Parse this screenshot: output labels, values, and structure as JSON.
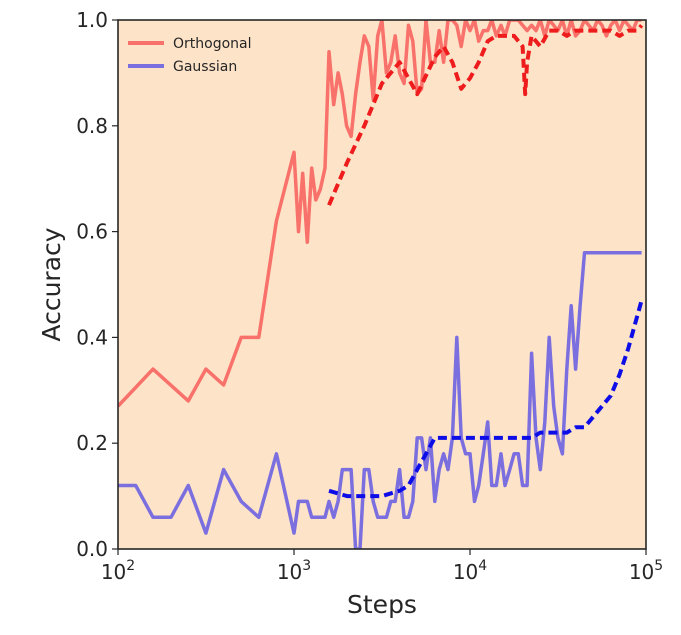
{
  "chart_data": {
    "type": "line",
    "x_scale": "log",
    "xlim": [
      100,
      100000
    ],
    "ylim": [
      0.0,
      1.0
    ],
    "xlabel": "Steps",
    "ylabel": "Accuracy",
    "background_color": "#fde3c8",
    "x_ticks": [
      {
        "value": 100,
        "base": "10",
        "exp": "2"
      },
      {
        "value": 1000,
        "base": "10",
        "exp": "3"
      },
      {
        "value": 10000,
        "base": "10",
        "exp": "4"
      },
      {
        "value": 100000,
        "base": "10",
        "exp": "5"
      }
    ],
    "y_ticks": [
      {
        "value": 0.0,
        "label": "0.0"
      },
      {
        "value": 0.2,
        "label": "0.2"
      },
      {
        "value": 0.4,
        "label": "0.4"
      },
      {
        "value": 0.6,
        "label": "0.6"
      },
      {
        "value": 0.8,
        "label": "0.8"
      },
      {
        "value": 1.0,
        "label": "1.0"
      }
    ],
    "legend": {
      "placement": "top-left",
      "entries": [
        {
          "label": "Orthogonal",
          "color": "#f8716a"
        },
        {
          "label": "Gaussian",
          "color": "#7b6fe0"
        }
      ]
    },
    "series": [
      {
        "name": "Orthogonal",
        "style": "solid",
        "color": "#f8716a",
        "x": [
          100,
          158,
          251,
          316,
          398,
          501,
          631,
          794,
          1000,
          1060,
          1120,
          1190,
          1260,
          1330,
          1410,
          1500,
          1580,
          1680,
          1780,
          1880,
          1990,
          2110,
          2240,
          2370,
          2510,
          2660,
          2820,
          2990,
          3160,
          3350,
          3550,
          3760,
          3980,
          4220,
          4470,
          4730,
          5010,
          5310,
          5620,
          5960,
          6310,
          6680,
          7080,
          7500,
          7940,
          8410,
          8910,
          9440,
          10000,
          10600,
          11200,
          11900,
          12600,
          13300,
          14100,
          15000,
          15800,
          16800,
          17800,
          18800,
          19900,
          21100,
          22400,
          23700,
          25100,
          26600,
          28200,
          29900,
          31600,
          33500,
          35500,
          37600,
          39800,
          42200,
          44700,
          47300,
          50100,
          53100,
          56200,
          59600,
          63100,
          66800,
          70800,
          75000,
          79400,
          84100,
          89100,
          94400
        ],
        "y": [
          0.27,
          0.34,
          0.28,
          0.34,
          0.31,
          0.4,
          0.4,
          0.62,
          0.75,
          0.6,
          0.71,
          0.58,
          0.72,
          0.66,
          0.68,
          0.72,
          0.94,
          0.84,
          0.9,
          0.86,
          0.8,
          0.78,
          0.86,
          0.92,
          0.97,
          0.95,
          0.85,
          0.97,
          1.0,
          0.9,
          0.92,
          0.97,
          0.9,
          0.88,
          0.99,
          0.96,
          0.86,
          0.87,
          1.0,
          0.92,
          0.92,
          0.98,
          0.92,
          1.0,
          1.0,
          0.99,
          0.95,
          1.0,
          0.98,
          1.0,
          0.96,
          0.98,
          0.98,
          1.0,
          0.97,
          0.99,
          0.97,
          1.0,
          1.0,
          1.0,
          0.99,
          0.98,
          0.99,
          0.98,
          1.0,
          0.97,
          1.0,
          0.99,
          0.98,
          1.0,
          0.97,
          1.0,
          0.97,
          0.98,
          1.0,
          0.99,
          0.98,
          1.0,
          0.99,
          0.97,
          0.99,
          1.0,
          0.98,
          1.0,
          0.99,
          0.98,
          1.0,
          1.0
        ]
      },
      {
        "name": "Orthogonal (smoothed)",
        "style": "dashed",
        "color": "#ee1c1c",
        "x": [
          1580,
          2000,
          2510,
          3160,
          3980,
          5010,
          6310,
          7080,
          7940,
          8910,
          10000,
          11200,
          12600,
          14100,
          15800,
          17800,
          19900,
          20600,
          21100,
          22400,
          25100,
          28200,
          31600,
          35500,
          39800,
          44700,
          50100,
          56200,
          63100,
          70800,
          79400,
          89100,
          94400
        ],
        "y": [
          0.65,
          0.73,
          0.8,
          0.88,
          0.92,
          0.86,
          0.93,
          0.95,
          0.92,
          0.87,
          0.89,
          0.92,
          0.96,
          0.97,
          0.97,
          0.97,
          0.95,
          0.86,
          0.92,
          0.97,
          0.95,
          0.98,
          0.98,
          0.97,
          0.98,
          0.98,
          0.98,
          0.98,
          0.98,
          0.97,
          0.98,
          0.98,
          0.99
        ]
      },
      {
        "name": "Gaussian",
        "style": "solid",
        "color": "#7b6fe0",
        "x": [
          100,
          126,
          158,
          200,
          251,
          316,
          398,
          501,
          631,
          794,
          1000,
          1060,
          1120,
          1190,
          1260,
          1330,
          1410,
          1500,
          1580,
          1680,
          1780,
          1880,
          1990,
          2110,
          2240,
          2370,
          2510,
          2660,
          2820,
          2990,
          3160,
          3350,
          3550,
          3760,
          3980,
          4220,
          4470,
          4730,
          5010,
          5310,
          5620,
          5960,
          6310,
          6680,
          7080,
          7500,
          7940,
          8410,
          8910,
          9440,
          10000,
          10600,
          11200,
          11900,
          12600,
          13300,
          14100,
          15000,
          15800,
          16800,
          17800,
          18800,
          19900,
          21100,
          22400,
          23700,
          25100,
          26600,
          28200,
          29900,
          31600,
          33500,
          35500,
          37600,
          39800,
          42200,
          44700,
          47300,
          50100,
          53100,
          56200,
          59600,
          63100,
          66800,
          70800,
          75000,
          79400,
          84100,
          89100,
          94400
        ],
        "y": [
          0.12,
          0.12,
          0.06,
          0.06,
          0.12,
          0.03,
          0.15,
          0.09,
          0.06,
          0.18,
          0.03,
          0.09,
          0.09,
          0.09,
          0.06,
          0.06,
          0.06,
          0.06,
          0.09,
          0.06,
          0.09,
          0.15,
          0.15,
          0.15,
          0.0,
          0.0,
          0.15,
          0.15,
          0.09,
          0.06,
          0.06,
          0.06,
          0.09,
          0.09,
          0.15,
          0.06,
          0.06,
          0.09,
          0.21,
          0.21,
          0.15,
          0.21,
          0.09,
          0.15,
          0.18,
          0.15,
          0.21,
          0.4,
          0.21,
          0.18,
          0.18,
          0.09,
          0.12,
          0.18,
          0.24,
          0.12,
          0.12,
          0.18,
          0.12,
          0.15,
          0.18,
          0.18,
          0.12,
          0.12,
          0.37,
          0.21,
          0.15,
          0.24,
          0.4,
          0.27,
          0.21,
          0.18,
          0.34,
          0.46,
          0.34,
          0.46,
          0.56,
          0.56,
          0.56,
          0.56,
          0.56,
          0.56,
          0.56,
          0.56,
          0.56,
          0.56,
          0.56,
          0.56,
          0.56,
          0.56
        ]
      },
      {
        "name": "Gaussian (smoothed)",
        "style": "dashed",
        "color": "#0d0de8",
        "x": [
          1580,
          2000,
          2510,
          3160,
          3980,
          4470,
          5010,
          5620,
          6310,
          7080,
          7940,
          8910,
          10000,
          11200,
          12600,
          14100,
          15800,
          17800,
          19900,
          22400,
          25100,
          28200,
          31600,
          35500,
          39800,
          44700,
          50100,
          56200,
          63100,
          70800,
          79400,
          89100,
          94400
        ],
        "y": [
          0.11,
          0.1,
          0.1,
          0.1,
          0.11,
          0.12,
          0.15,
          0.18,
          0.21,
          0.21,
          0.21,
          0.21,
          0.21,
          0.21,
          0.21,
          0.21,
          0.21,
          0.21,
          0.21,
          0.21,
          0.22,
          0.22,
          0.22,
          0.22,
          0.23,
          0.23,
          0.25,
          0.27,
          0.29,
          0.33,
          0.38,
          0.44,
          0.47
        ]
      }
    ]
  }
}
